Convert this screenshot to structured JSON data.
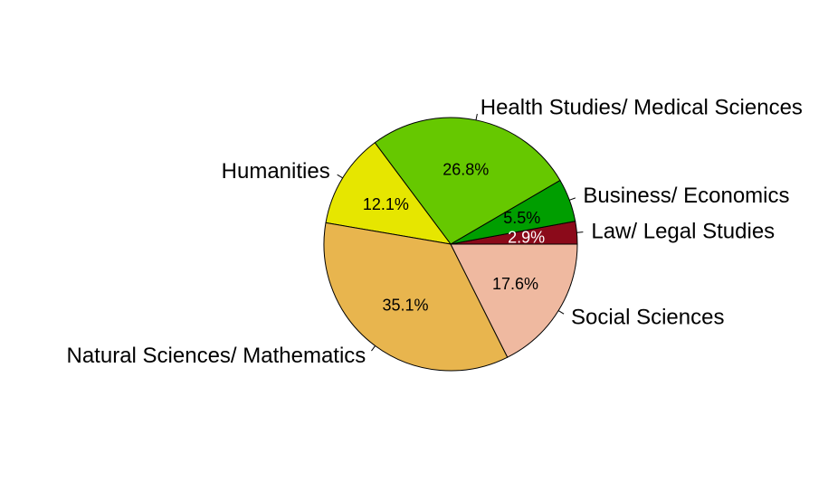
{
  "chart_data": {
    "type": "pie",
    "title": "",
    "start_angle_deg": 0,
    "direction": "counterclockwise",
    "slices": [
      {
        "label": "Law/ Legal Studies",
        "value": 2.9,
        "pct_label": "2.9%",
        "color": "#8B0A1A",
        "text_color": "#ffffff"
      },
      {
        "label": "Business/ Economics",
        "value": 5.5,
        "pct_label": "5.5%",
        "color": "#009E00",
        "text_color": "#000000"
      },
      {
        "label": "Health Studies/ Medical Sciences",
        "value": 26.8,
        "pct_label": "26.8%",
        "color": "#66C800",
        "text_color": "#000000"
      },
      {
        "label": "Humanities",
        "value": 12.1,
        "pct_label": "12.1%",
        "color": "#E6E600",
        "text_color": "#000000"
      },
      {
        "label": "Natural Sciences/ Mathematics",
        "value": 35.1,
        "pct_label": "35.1%",
        "color": "#E8B54E",
        "text_color": "#000000"
      },
      {
        "label": "Social Sciences",
        "value": 17.6,
        "pct_label": "17.6%",
        "color": "#EFB9A0",
        "text_color": "#000000"
      }
    ]
  }
}
